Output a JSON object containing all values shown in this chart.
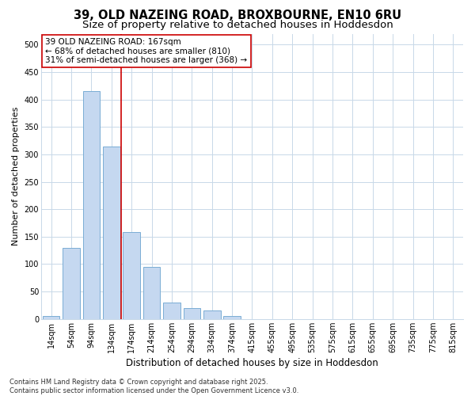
{
  "title_line1": "39, OLD NAZEING ROAD, BROXBOURNE, EN10 6RU",
  "title_line2": "Size of property relative to detached houses in Hoddesdon",
  "xlabel": "Distribution of detached houses by size in Hoddesdon",
  "ylabel": "Number of detached properties",
  "categories": [
    "14sqm",
    "54sqm",
    "94sqm",
    "134sqm",
    "174sqm",
    "214sqm",
    "254sqm",
    "294sqm",
    "334sqm",
    "374sqm",
    "415sqm",
    "455sqm",
    "495sqm",
    "535sqm",
    "575sqm",
    "615sqm",
    "655sqm",
    "695sqm",
    "735sqm",
    "775sqm",
    "815sqm"
  ],
  "values": [
    5,
    130,
    415,
    315,
    158,
    95,
    30,
    20,
    15,
    5,
    0,
    0,
    0,
    0,
    0,
    0,
    0,
    0,
    0,
    0,
    0
  ],
  "bar_color": "#c5d8f0",
  "bar_edgecolor": "#7aadd4",
  "bar_linewidth": 0.7,
  "vline_color": "#cc0000",
  "vline_x": 4.0,
  "annotation_text_line1": "39 OLD NAZEING ROAD: 167sqm",
  "annotation_text_line2": "← 68% of detached houses are smaller (810)",
  "annotation_text_line3": "31% of semi-detached houses are larger (368) →",
  "ylim": [
    0,
    520
  ],
  "yticks": [
    0,
    50,
    100,
    150,
    200,
    250,
    300,
    350,
    400,
    450,
    500
  ],
  "background_color": "#ffffff",
  "plot_bg_color": "#ffffff",
  "grid_color": "#c8d8e8",
  "footer_text": "Contains HM Land Registry data © Crown copyright and database right 2025.\nContains public sector information licensed under the Open Government Licence v3.0.",
  "title_fontsize": 10.5,
  "subtitle_fontsize": 9.5,
  "xlabel_fontsize": 8.5,
  "ylabel_fontsize": 8.0,
  "tick_fontsize": 7.0,
  "footer_fontsize": 6.0,
  "annotation_fontsize": 7.5,
  "figsize": [
    6.0,
    5.0
  ],
  "dpi": 100
}
